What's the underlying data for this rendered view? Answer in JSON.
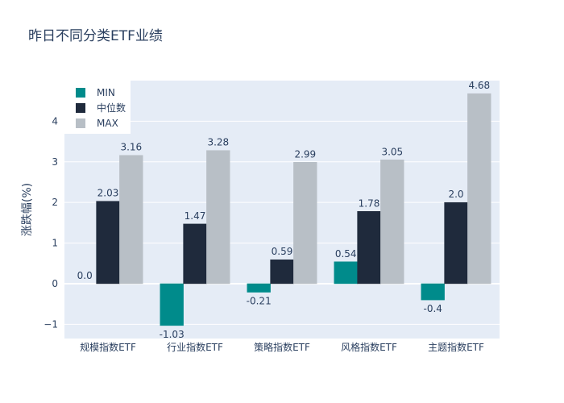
{
  "chart_data": {
    "type": "bar",
    "title": "昨日不同分类ETF业绩",
    "xlabel": "",
    "ylabel": "涨跌幅(%)",
    "categories": [
      "规模指数ETF",
      "行业指数ETF",
      "策略指数ETF",
      "风格指数ETF",
      "主题指数ETF"
    ],
    "series": [
      {
        "name": "MIN",
        "color": "#008b8b",
        "values": [
          0.0,
          -1.03,
          -0.21,
          0.54,
          -0.4
        ],
        "labels": [
          "0.0",
          "-1.03",
          "-0.21",
          "0.54",
          "-0.4"
        ]
      },
      {
        "name": "中位数",
        "color": "#1f2a3c",
        "values": [
          2.03,
          1.47,
          0.59,
          1.78,
          2.0
        ],
        "labels": [
          "2.03",
          "1.47",
          "0.59",
          "1.78",
          "2.0"
        ]
      },
      {
        "name": "MAX",
        "color": "#b8bfc6",
        "values": [
          3.16,
          3.28,
          2.99,
          3.05,
          4.68
        ],
        "labels": [
          "3.16",
          "3.28",
          "2.99",
          "3.05",
          "4.68"
        ]
      }
    ],
    "ylim": [
      -1.35,
      5.0
    ],
    "yticks": [
      -1,
      0,
      1,
      2,
      3,
      4
    ],
    "ytick_labels": [
      "−1",
      "0",
      "1",
      "2",
      "3",
      "4"
    ],
    "grid": true,
    "legend_position": "top-left",
    "plot_bg": "#e5ecf6",
    "text_color": "#2a3f5f"
  }
}
